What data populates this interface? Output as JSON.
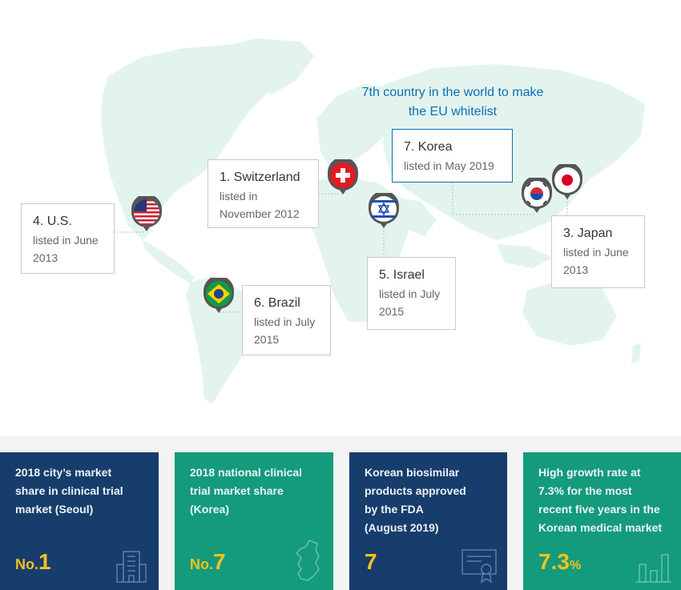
{
  "callout": {
    "line1": "7th country in the world to make",
    "line2": "the EU whitelist"
  },
  "countries": [
    {
      "order": "4. U.S.",
      "line1": "listed in June",
      "line2": "2013",
      "flag": "us-flag-icon"
    },
    {
      "order": "1. Switzerland",
      "line1": "listed in",
      "line2": "November 2012",
      "flag": "switzerland-flag-icon"
    },
    {
      "order": "7. Korea",
      "line1": "listed in May 2019",
      "line2": "",
      "flag": "korea-flag-icon"
    },
    {
      "order": "3. Japan",
      "line1": "listed in June",
      "line2": "2013",
      "flag": "japan-flag-icon"
    },
    {
      "order": "5. Israel",
      "line1": "listed in July",
      "line2": "2015",
      "flag": "israel-flag-icon"
    },
    {
      "order": "6. Brazil",
      "line1": "listed in July",
      "line2": "2015",
      "flag": "brazil-flag-icon"
    }
  ],
  "stats": [
    {
      "label": "2018 city’s market\nshare in clinical trial\nmarket (Seoul)",
      "prefix": "No.",
      "value": "1",
      "suffix": "",
      "icon": "building-icon"
    },
    {
      "label": "2018 national clinical\ntrial market share\n (Korea)",
      "prefix": "No.",
      "value": "7",
      "suffix": "",
      "icon": "korea-map-icon"
    },
    {
      "label": "Korean biosimilar\nproducts approved\nby the FDA\n(August 2019)",
      "prefix": "",
      "value": "7",
      "suffix": "",
      "icon": "certificate-icon"
    },
    {
      "label": "High growth rate at\n7.3% for the most\nrecent five years in the\nKorean medical market",
      "prefix": "",
      "value": "7.3",
      "suffix": "%",
      "icon": "bar-chart-icon"
    }
  ],
  "colors": {
    "map": "#e4f4ef",
    "accent_blue": "#0a6fb8",
    "navy": "#173d6c",
    "green": "#139b7c",
    "gold": "#f6c21c"
  }
}
